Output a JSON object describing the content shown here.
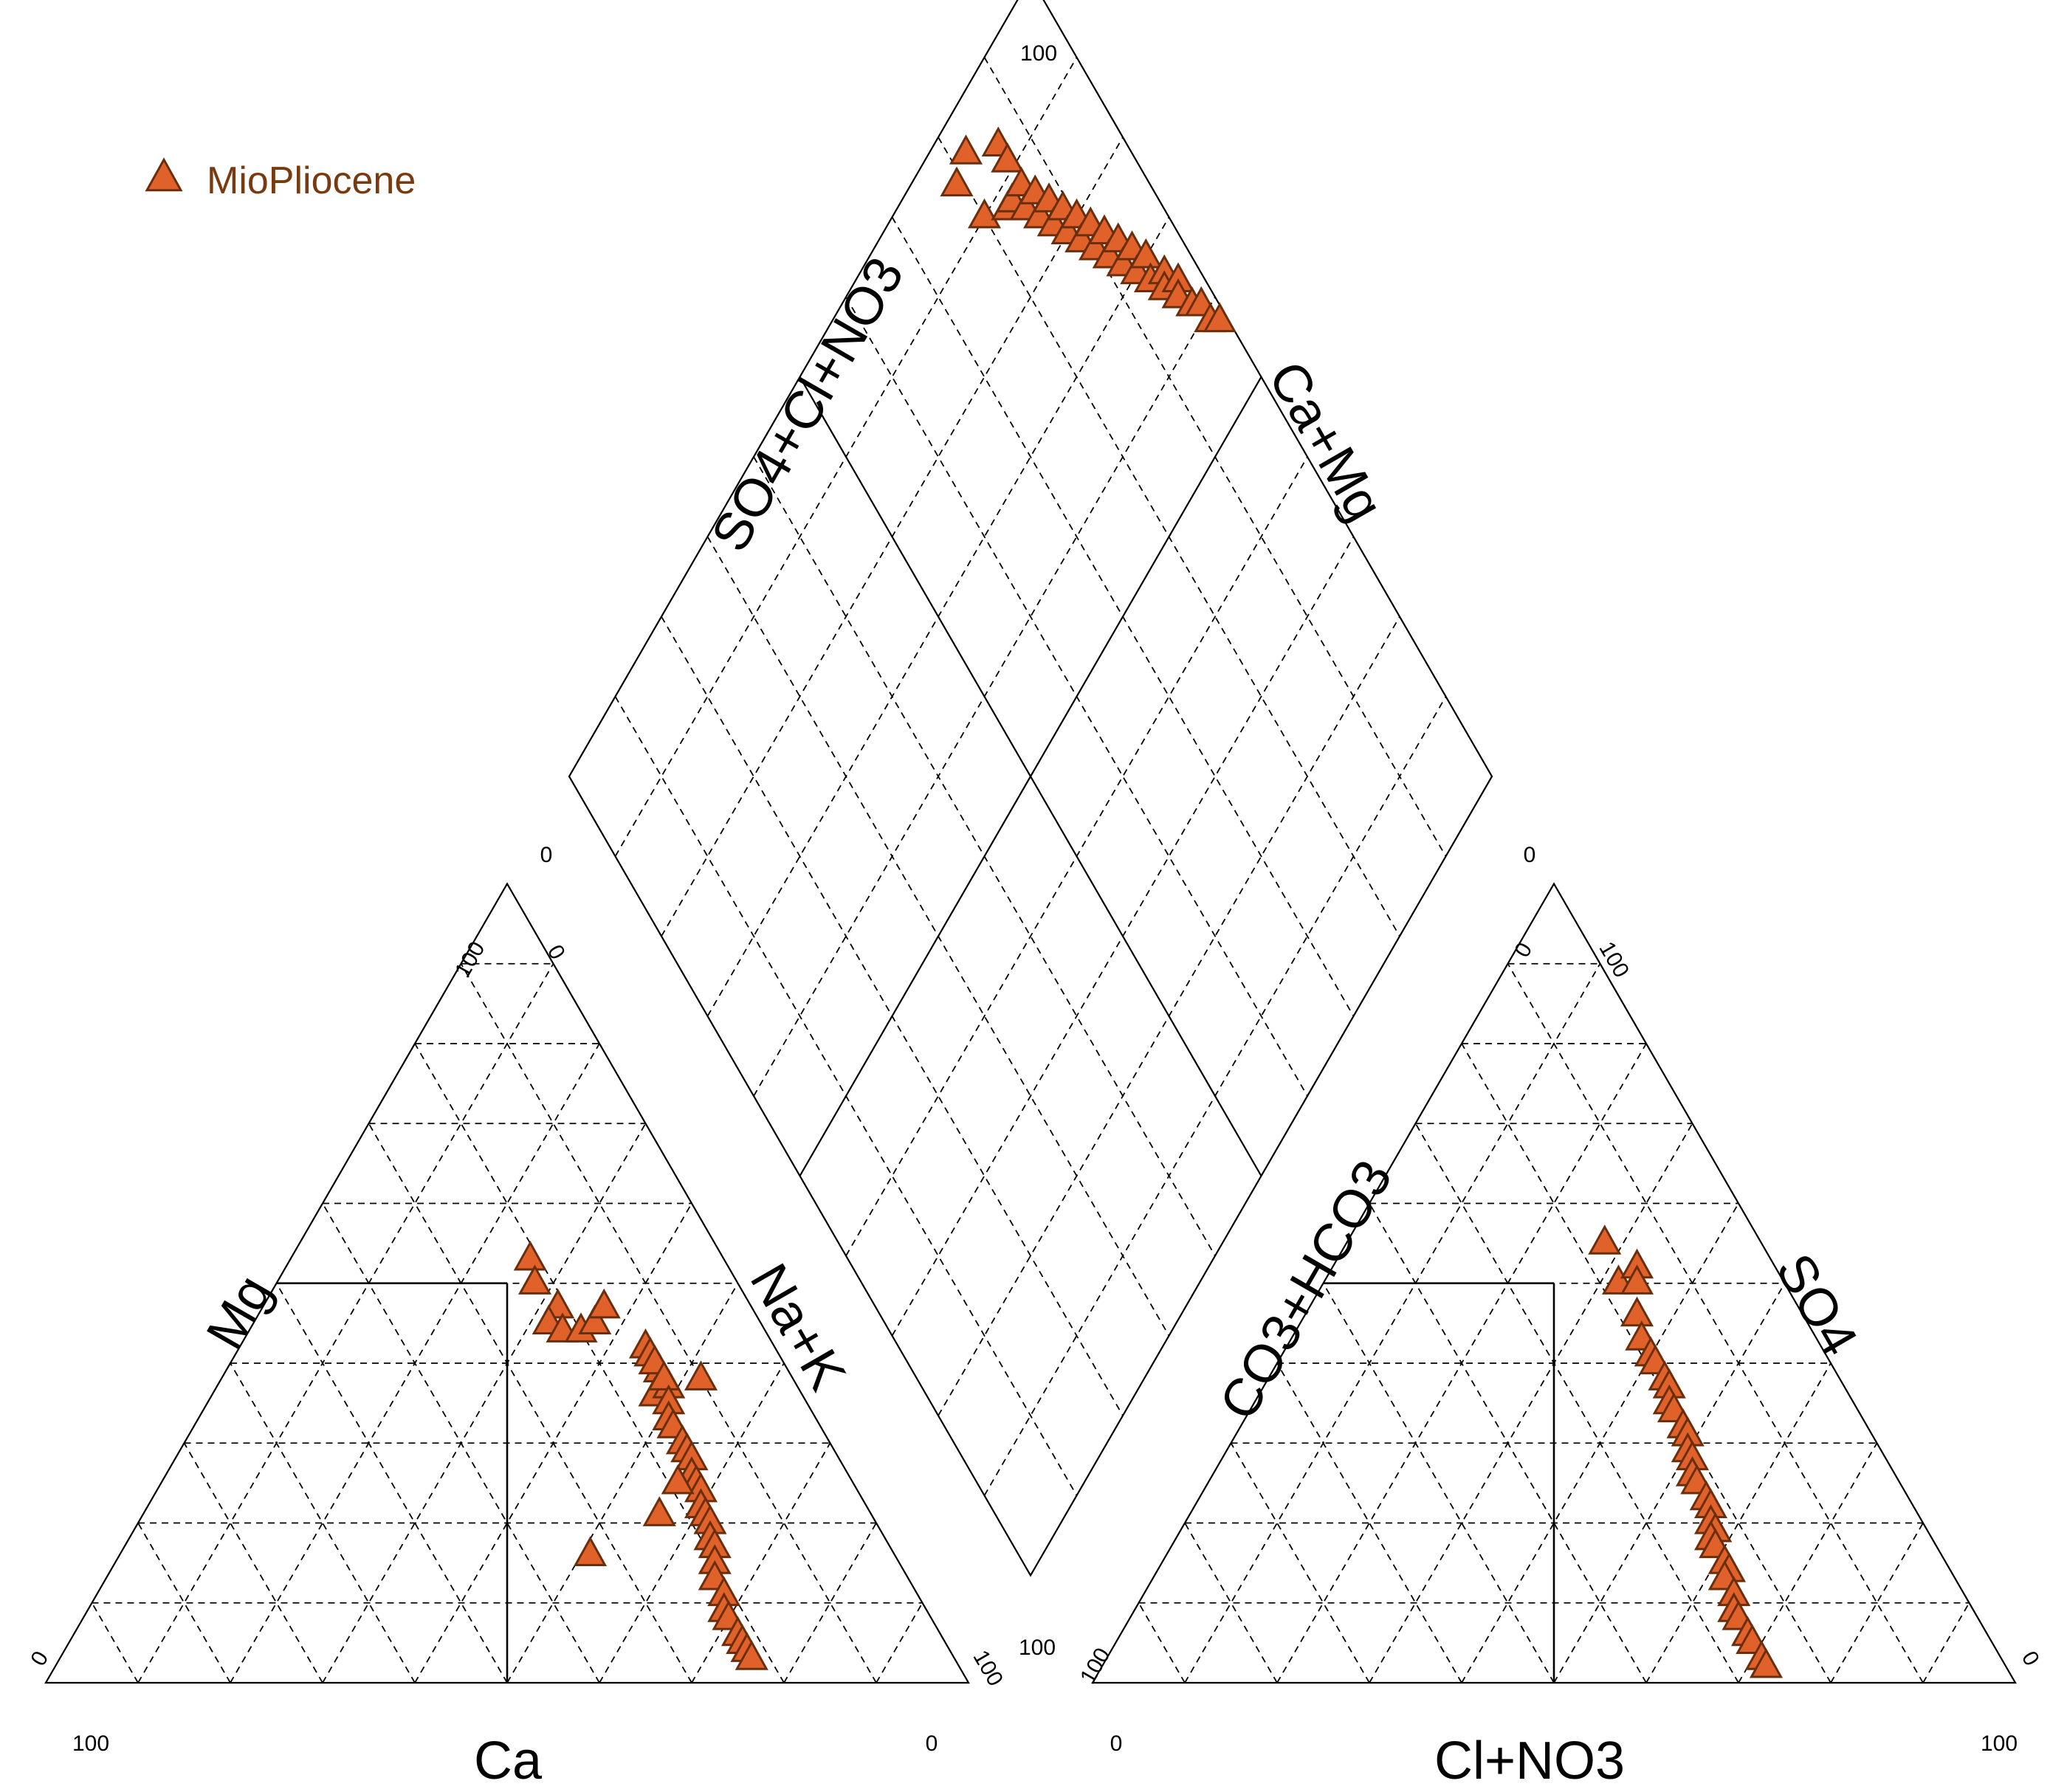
{
  "chart_data": {
    "type": "scatter",
    "subtype": "piper-diagram",
    "grid": true,
    "legend": {
      "placement": "top-left",
      "entries": [
        {
          "label": "MioPliocene",
          "marker": "triangle",
          "fill": "#e0622a",
          "stroke": "#6b2e0c"
        }
      ]
    },
    "colors": {
      "marker_fill": "#e0622a",
      "marker_stroke": "#6b2e0c",
      "legend_text": "#7a3a10"
    },
    "cation_triangle": {
      "axis_labels": {
        "bottom": "Ca",
        "left": "Mg",
        "right": "Na+K"
      },
      "ticks": {
        "bottom_left": "100",
        "bottom_right": "0",
        "left_bottom": "0",
        "left_top": "100",
        "right_top": "0",
        "right_bottom": "100"
      },
      "points_Mg_NaK": [
        [
          53,
          26
        ],
        [
          50,
          28
        ],
        [
          47,
          32
        ],
        [
          45,
          32
        ],
        [
          44,
          34
        ],
        [
          44,
          36
        ],
        [
          45,
          37
        ],
        [
          47,
          37
        ],
        [
          42,
          44
        ],
        [
          41,
          45
        ],
        [
          39,
          47
        ],
        [
          36,
          48
        ],
        [
          40,
          46
        ],
        [
          37,
          49
        ],
        [
          38,
          48
        ],
        [
          35,
          50
        ],
        [
          33,
          51
        ],
        [
          32,
          52
        ],
        [
          30,
          54
        ],
        [
          29,
          55
        ],
        [
          28,
          56
        ],
        [
          26,
          57
        ],
        [
          25,
          58
        ],
        [
          24,
          59
        ],
        [
          22,
          60
        ],
        [
          21,
          61
        ],
        [
          20,
          62
        ],
        [
          18,
          63
        ],
        [
          17,
          64
        ],
        [
          15,
          65
        ],
        [
          13,
          66
        ],
        [
          11,
          68
        ],
        [
          9,
          69
        ],
        [
          8,
          70
        ],
        [
          6,
          72
        ],
        [
          5,
          73
        ],
        [
          4,
          74
        ],
        [
          3,
          75
        ],
        [
          21,
          56
        ],
        [
          25,
          56
        ],
        [
          38,
          52
        ],
        [
          16,
          51
        ]
      ]
    },
    "anion_triangle": {
      "axis_labels": {
        "bottom": "Cl+NO3",
        "left": "CO3+HCO3",
        "right": "SO4"
      },
      "ticks": {
        "bottom_left": "0",
        "bottom_right": "100",
        "left_bottom": "100",
        "left_top": "0",
        "right_top": "100",
        "right_bottom": "0"
      },
      "points_SO4_Cl": [
        [
          55,
          28
        ],
        [
          50,
          32
        ],
        [
          52,
          33
        ],
        [
          50,
          34
        ],
        [
          46,
          36
        ],
        [
          43,
          38
        ],
        [
          41,
          40
        ],
        [
          40,
          41
        ],
        [
          38,
          43
        ],
        [
          37,
          44
        ],
        [
          35,
          45
        ],
        [
          34,
          46
        ],
        [
          32,
          48
        ],
        [
          31,
          49
        ],
        [
          29,
          50
        ],
        [
          28,
          51
        ],
        [
          26,
          52
        ],
        [
          25,
          53
        ],
        [
          23,
          55
        ],
        [
          22,
          56
        ],
        [
          20,
          57
        ],
        [
          19,
          58
        ],
        [
          18,
          58
        ],
        [
          17,
          59
        ],
        [
          15,
          61
        ],
        [
          14,
          62
        ],
        [
          13,
          62
        ],
        [
          11,
          64
        ],
        [
          9,
          65
        ],
        [
          8,
          66
        ],
        [
          6,
          68
        ],
        [
          5,
          69
        ],
        [
          3,
          71
        ],
        [
          2,
          72
        ]
      ]
    },
    "diamond": {
      "axis_labels": {
        "upper_left": "SO4+Cl+NO3",
        "upper_right": "Ca+Mg",
        "lower_right": "CO3+HCO3"
      },
      "ticks": {
        "top": "100",
        "left": "0",
        "right": "0",
        "bottom": "100"
      },
      "points_CaMg_SO4ClNO3": [
        [
          79,
          95
        ],
        [
          82,
          96
        ],
        [
          80,
          90
        ],
        [
          86,
          93
        ],
        [
          83,
          88
        ],
        [
          86,
          91
        ],
        [
          84,
          88
        ],
        [
          86,
          88
        ],
        [
          85,
          86
        ],
        [
          87,
          86
        ],
        [
          86,
          84
        ],
        [
          88,
          84
        ],
        [
          87,
          82
        ],
        [
          89,
          82
        ],
        [
          88,
          80
        ],
        [
          90,
          80
        ],
        [
          89,
          78
        ],
        [
          91,
          78
        ],
        [
          90,
          76
        ],
        [
          92,
          76
        ],
        [
          91,
          74
        ],
        [
          93,
          74
        ],
        [
          92,
          72
        ],
        [
          94,
          72
        ],
        [
          93,
          70
        ],
        [
          95,
          70
        ],
        [
          94,
          68
        ],
        [
          96,
          67
        ],
        [
          95,
          66
        ],
        [
          97,
          65
        ],
        [
          96,
          64
        ],
        [
          97,
          62
        ],
        [
          98,
          61
        ],
        [
          98,
          59
        ],
        [
          99,
          58
        ]
      ]
    }
  }
}
